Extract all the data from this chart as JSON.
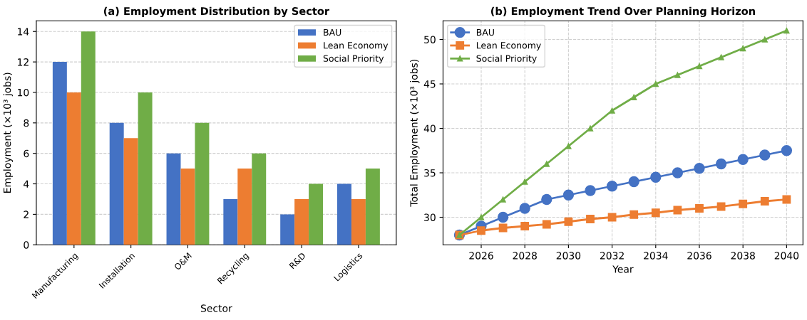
{
  "chart_data": [
    {
      "type": "bar",
      "title": "(a) Employment Distribution by Sector",
      "xlabel": "Sector",
      "ylabel": "Employment (×10³ jobs)",
      "categories": [
        "Manufacturing",
        "Installation",
        "O&M",
        "Recycling",
        "R&D",
        "Logistics"
      ],
      "series": [
        {
          "name": "BAU",
          "color": "#4472c4",
          "values": [
            12,
            8,
            6,
            3,
            2,
            4
          ]
        },
        {
          "name": "Lean Economy",
          "color": "#ed7d31",
          "values": [
            10,
            7,
            5,
            5,
            3,
            3
          ]
        },
        {
          "name": "Social Priority",
          "color": "#70ad47",
          "values": [
            14,
            10,
            8,
            6,
            4,
            5
          ]
        }
      ],
      "ylim": [
        0,
        14.7
      ],
      "yticks": [
        0,
        2,
        4,
        6,
        8,
        10,
        12,
        14
      ],
      "grid": "y",
      "legend": "top right"
    },
    {
      "type": "line",
      "title": "(b) Employment Trend Over Planning Horizon",
      "xlabel": "Year",
      "ylabel": "Total Employment (×10³ jobs)",
      "x": [
        2025,
        2026,
        2027,
        2028,
        2029,
        2030,
        2031,
        2032,
        2033,
        2034,
        2035,
        2036,
        2037,
        2038,
        2039,
        2040
      ],
      "series": [
        {
          "name": "BAU",
          "color": "#4472c4",
          "marker": "circle",
          "values": [
            28,
            29,
            30,
            31,
            32,
            32.5,
            33,
            33.5,
            34,
            34.5,
            35,
            35.5,
            36,
            36.5,
            37,
            37.5
          ]
        },
        {
          "name": "Lean Economy",
          "color": "#ed7d31",
          "marker": "square",
          "values": [
            28,
            28.5,
            28.8,
            29,
            29.2,
            29.5,
            29.8,
            30,
            30.3,
            30.5,
            30.8,
            31,
            31.2,
            31.5,
            31.8,
            32
          ]
        },
        {
          "name": "Social Priority",
          "color": "#70ad47",
          "marker": "triangle",
          "values": [
            28,
            30,
            32,
            34,
            36,
            38,
            40,
            42,
            43.5,
            45,
            46,
            47,
            48,
            49,
            50,
            51
          ]
        }
      ],
      "xlim": [
        2024.25,
        2040.75
      ],
      "xticks": [
        2026,
        2028,
        2030,
        2032,
        2034,
        2036,
        2038,
        2040
      ],
      "ylim": [
        26.9,
        52.1
      ],
      "yticks": [
        30,
        35,
        40,
        45,
        50
      ],
      "grid": true,
      "legend": "top left",
      "line_style": "solid"
    }
  ]
}
